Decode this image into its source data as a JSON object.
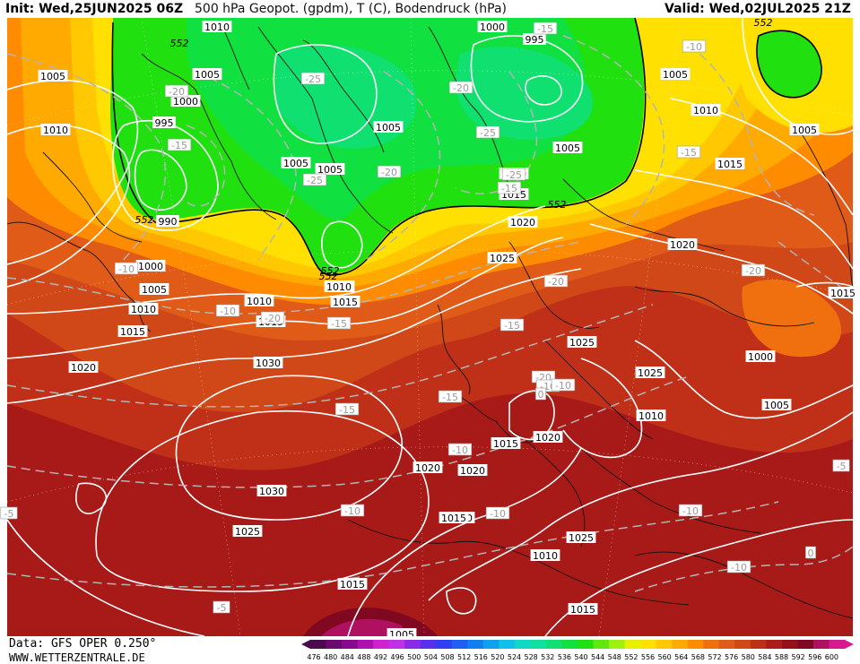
{
  "header": {
    "init": "Init: Wed,25JUN2025 06Z",
    "title": "500 hPa Geopot. (gpdm), T (C), Bodendruck (hPa)",
    "valid": "Valid: Wed,02JUL2025 21Z"
  },
  "footer": {
    "data_source": "Data: GFS OPER 0.250°",
    "website": "WWW.WETTERZENTRALE.DE"
  },
  "legend": {
    "ticks": [
      "476",
      "480",
      "484",
      "488",
      "492",
      "496",
      "500",
      "504",
      "508",
      "512",
      "516",
      "520",
      "524",
      "528",
      "532",
      "536",
      "540",
      "544",
      "548",
      "552",
      "556",
      "560",
      "564",
      "568",
      "572",
      "576",
      "580",
      "584",
      "588",
      "592",
      "596",
      "600"
    ],
    "colors": [
      "#4b0a4e",
      "#6a0a6e",
      "#8a0a8e",
      "#b010b0",
      "#d020d0",
      "#c030e8",
      "#8a2be8",
      "#5a2fe8",
      "#3040f0",
      "#2060f0",
      "#1080f0",
      "#10a0f0",
      "#10c0e8",
      "#10d8c8",
      "#10e0a0",
      "#10e070",
      "#10e040",
      "#20e010",
      "#60e810",
      "#a0f010",
      "#e8f000",
      "#ffe000",
      "#ffc800",
      "#ffaa00",
      "#ff8c00",
      "#f07010",
      "#e05a18",
      "#d04818",
      "#c03018",
      "#ac1c18",
      "#961018",
      "#800820",
      "#b01060",
      "#d81890"
    ]
  },
  "map": {
    "height_shading_colors": {
      "green_core": "#10e070",
      "green": "#20e010",
      "yellow": "#ffe000",
      "orange": "#ffaa00",
      "red_orange": "#e05a18",
      "red": "#c03018",
      "dark_red": "#961018"
    },
    "height_contour_labels": [
      "552",
      "552",
      "552",
      "552",
      "552",
      "552"
    ],
    "pressure_labels": [
      {
        "t": "1010"
      },
      {
        "t": "1005"
      },
      {
        "t": "1010"
      },
      {
        "t": "1005"
      },
      {
        "t": "1000"
      },
      {
        "t": "995"
      },
      {
        "t": "990"
      },
      {
        "t": "1000"
      },
      {
        "t": "1005"
      },
      {
        "t": "1010"
      },
      {
        "t": "1015"
      },
      {
        "t": "1020"
      },
      {
        "t": "1005"
      },
      {
        "t": "1005"
      },
      {
        "t": "1005"
      },
      {
        "t": "1005"
      },
      {
        "t": "1010"
      },
      {
        "t": "1015"
      },
      {
        "t": "1020"
      },
      {
        "t": "1025"
      },
      {
        "t": "1030"
      },
      {
        "t": "1030"
      },
      {
        "t": "1025"
      },
      {
        "t": "1015"
      },
      {
        "t": "1010"
      },
      {
        "t": "1000"
      },
      {
        "t": "995"
      },
      {
        "t": "1005"
      },
      {
        "t": "1010"
      },
      {
        "t": "1015"
      },
      {
        "t": "1020"
      },
      {
        "t": "1025"
      },
      {
        "t": "1025"
      },
      {
        "t": "1020"
      },
      {
        "t": "1015"
      },
      {
        "t": "1020"
      },
      {
        "t": "1020"
      },
      {
        "t": "1020"
      },
      {
        "t": "1025"
      },
      {
        "t": "1015"
      },
      {
        "t": "1015"
      },
      {
        "t": "1005"
      },
      {
        "t": "1000"
      },
      {
        "t": "1005"
      },
      {
        "t": "1010"
      },
      {
        "t": "1015"
      },
      {
        "t": "1005"
      },
      {
        "t": "1015"
      },
      {
        "t": "1010"
      },
      {
        "t": "1015"
      },
      {
        "t": "1010"
      },
      {
        "t": "1010"
      }
    ],
    "temperature_labels": [
      {
        "t": "-20"
      },
      {
        "t": "-20"
      },
      {
        "t": "-15"
      },
      {
        "t": "-25"
      },
      {
        "t": "-25"
      },
      {
        "t": "-20"
      },
      {
        "t": "-25"
      },
      {
        "t": "-20"
      },
      {
        "t": "-15"
      },
      {
        "t": "-15"
      },
      {
        "t": "-15"
      },
      {
        "t": "-10"
      },
      {
        "t": "-10"
      },
      {
        "t": "-10"
      },
      {
        "t": "-15"
      },
      {
        "t": "-20"
      },
      {
        "t": "-20"
      },
      {
        "t": "-15"
      },
      {
        "t": "-15"
      },
      {
        "t": "-20"
      },
      {
        "t": "-10"
      },
      {
        "t": "-10"
      },
      {
        "t": "-10"
      },
      {
        "t": "-10"
      },
      {
        "t": "-10"
      },
      {
        "t": "-10"
      },
      {
        "t": "-5"
      },
      {
        "t": "-5"
      },
      {
        "t": "-5"
      },
      {
        "t": "0"
      },
      {
        "t": "0"
      },
      {
        "t": "-10"
      },
      {
        "t": "-15"
      },
      {
        "t": "-25"
      }
    ]
  }
}
